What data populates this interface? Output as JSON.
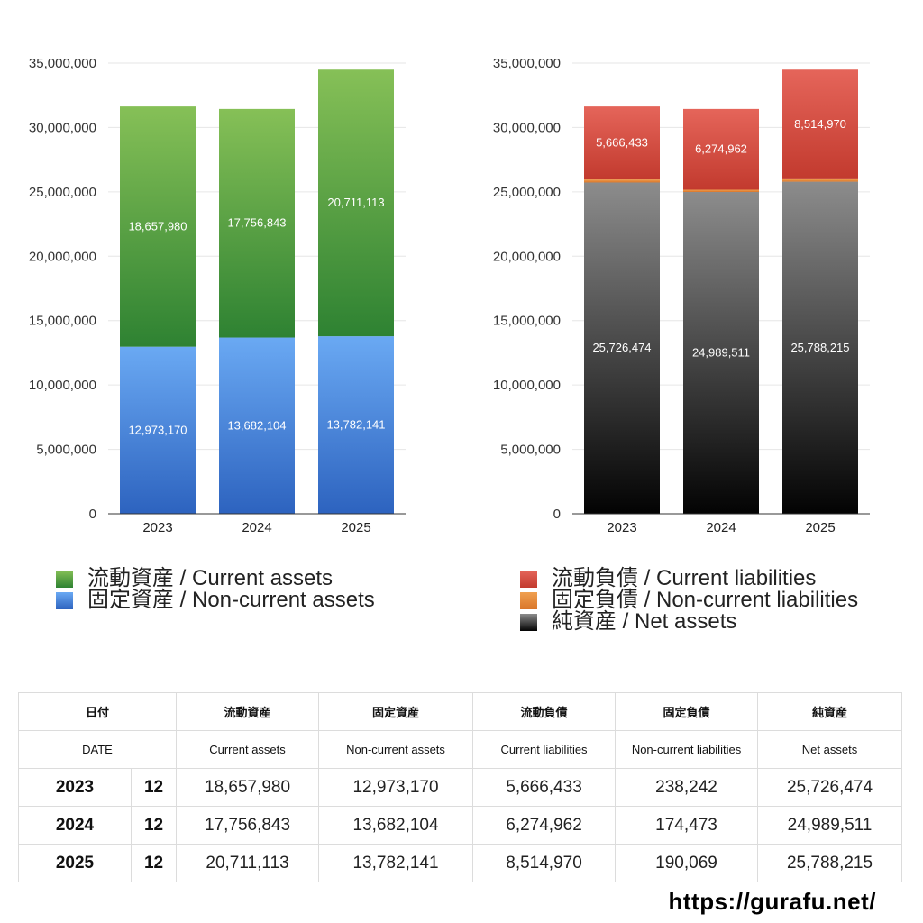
{
  "chart_data": [
    {
      "type": "bar",
      "stacked": true,
      "categories": [
        "2023",
        "2024",
        "2025"
      ],
      "ylim": [
        0,
        35000000
      ],
      "yticks": [
        "0",
        "5,000,000",
        "10,000,000",
        "15,000,000",
        "20,000,000",
        "25,000,000",
        "30,000,000",
        "35,000,000"
      ],
      "grid": true,
      "legend_position": "bottom",
      "series": [
        {
          "name": "固定資産 / Non-current assets",
          "values": [
            12973170,
            13682104,
            13782141
          ],
          "labels": [
            "12,973,170",
            "13,682,104",
            "13,782,141"
          ],
          "color_top": "#6aa9f3",
          "color_bottom": "#2d63bf"
        },
        {
          "name": "流動資産 / Current assets",
          "values": [
            18657980,
            17756843,
            20711113
          ],
          "labels": [
            "18,657,980",
            "17,756,843",
            "20,711,113"
          ],
          "color_top": "#86c057",
          "color_bottom": "#2e8232"
        }
      ]
    },
    {
      "type": "bar",
      "stacked": true,
      "categories": [
        "2023",
        "2024",
        "2025"
      ],
      "ylim": [
        0,
        35000000
      ],
      "yticks": [
        "0",
        "5,000,000",
        "10,000,000",
        "15,000,000",
        "20,000,000",
        "25,000,000",
        "30,000,000",
        "35,000,000"
      ],
      "grid": true,
      "legend_position": "bottom",
      "series": [
        {
          "name": "純資産 / Net assets",
          "values": [
            25726474,
            24989511,
            25788215
          ],
          "labels": [
            "25,726,474",
            "24,989,511",
            "25,788,215"
          ],
          "color_top": "#8c8c8c",
          "color_bottom": "#030303"
        },
        {
          "name": "固定負債 / Non-current liabilities",
          "values": [
            238242,
            174473,
            190069
          ],
          "labels": [
            "238,242",
            "174,473",
            "190,069"
          ],
          "color_top": "#f0a050",
          "color_bottom": "#d9762a"
        },
        {
          "name": "流動負債 / Current liabilities",
          "values": [
            5666433,
            6274962,
            8514970
          ],
          "labels": [
            "5,666,433",
            "6,274,962",
            "8,514,970"
          ],
          "color_top": "#e5655a",
          "color_bottom": "#c23a2e"
        }
      ]
    }
  ],
  "legends": {
    "left": [
      {
        "label": "流動資産 / Current assets",
        "color_top": "#86c057",
        "color_bottom": "#2e8232"
      },
      {
        "label": "固定資産 / Non-current assets",
        "color_top": "#6aa9f3",
        "color_bottom": "#2d63bf"
      }
    ],
    "right": [
      {
        "label": "流動負債 / Current liabilities",
        "color_top": "#e5655a",
        "color_bottom": "#c23a2e"
      },
      {
        "label": "固定負債 / Non-current liabilities",
        "color_top": "#f0a050",
        "color_bottom": "#d9762a"
      },
      {
        "label": "純資産 / Net assets",
        "color_top": "#8c8c8c",
        "color_bottom": "#030303"
      }
    ]
  },
  "table": {
    "header_jp": {
      "date": "日付",
      "current_assets": "流動資産",
      "noncurrent_assets": "固定資産",
      "current_liabilities": "流動負債",
      "noncurrent_liabilities": "固定負債",
      "net_assets": "純資産"
    },
    "header_en": {
      "date": "DATE",
      "current_assets": "Current assets",
      "noncurrent_assets": "Non-current assets",
      "current_liabilities": "Current liabilities",
      "noncurrent_liabilities": "Non-current liabilities",
      "net_assets": "Net assets"
    },
    "rows": [
      {
        "year": "2023",
        "month": "12",
        "current_assets": "18,657,980",
        "noncurrent_assets": "12,973,170",
        "current_liabilities": "5,666,433",
        "noncurrent_liabilities": "238,242",
        "net_assets": "25,726,474"
      },
      {
        "year": "2024",
        "month": "12",
        "current_assets": "17,756,843",
        "noncurrent_assets": "13,682,104",
        "current_liabilities": "6,274,962",
        "noncurrent_liabilities": "174,473",
        "net_assets": "24,989,511"
      },
      {
        "year": "2025",
        "month": "12",
        "current_assets": "20,711,113",
        "noncurrent_assets": "13,782,141",
        "current_liabilities": "8,514,970",
        "noncurrent_liabilities": "190,069",
        "net_assets": "25,788,215"
      }
    ]
  },
  "site_url": "https://gurafu.net/"
}
